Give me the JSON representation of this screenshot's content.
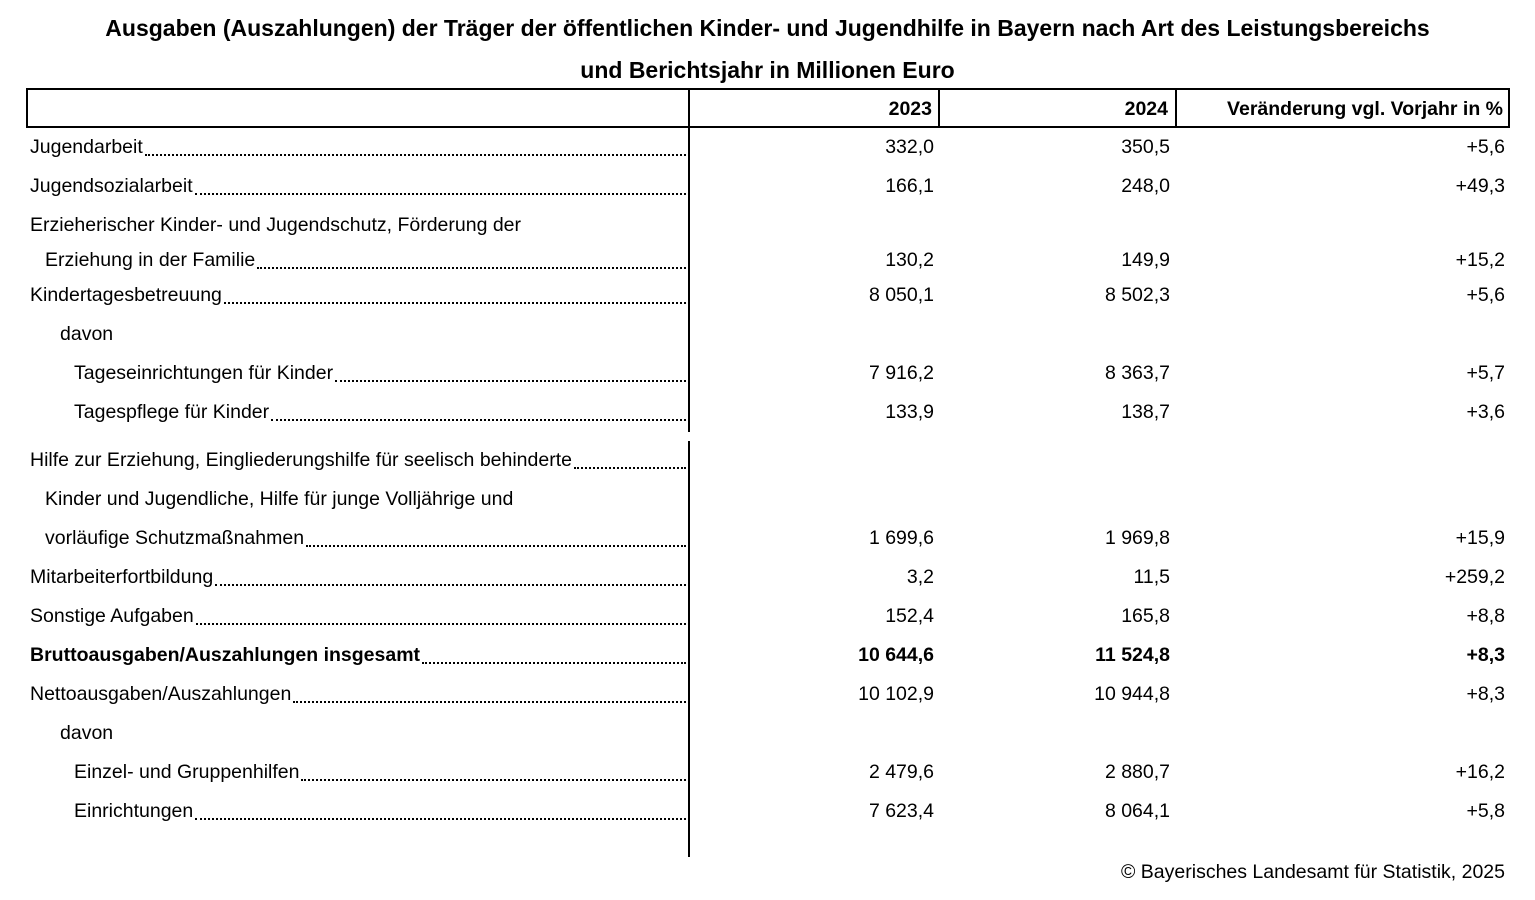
{
  "title": "Ausgaben (Auszahlungen) der Träger der öffentlichen Kinder- und Jugendhilfe in Bayern nach Art des Leistungsbereichs\nund Berichtsjahr in Millionen Euro",
  "table": {
    "columns": [
      "",
      "2023",
      "2024",
      "Veränderung vgl. Vorjahr in %"
    ],
    "rows": [
      {
        "label": "Jugendarbeit",
        "indent": 0,
        "dots": true,
        "v2023": "332,0",
        "v2024": "350,5",
        "change": "+5,6",
        "bold": false
      },
      {
        "label": "Jugendsozialarbeit",
        "indent": 0,
        "dots": true,
        "v2023": "166,1",
        "v2024": "248,0",
        "change": "+49,3",
        "bold": false
      },
      {
        "label": "Erzieherischer Kinder- und Jugendschutz, Förderung der",
        "indent": 0,
        "dots": false,
        "v2023": null,
        "v2024": null,
        "change": null,
        "bold": false
      },
      {
        "label": "Erziehung in der Familie",
        "indent": 1,
        "dots": true,
        "v2023": "130,2",
        "v2024": "149,9",
        "change": "+15,2",
        "bold": false,
        "compact": true
      },
      {
        "label": "Kindertagesbetreuung",
        "indent": 0,
        "dots": true,
        "v2023": "8 050,1",
        "v2024": "8 502,3",
        "change": "+5,6",
        "bold": false
      },
      {
        "label": "davon",
        "indent": 2,
        "dots": false,
        "v2023": null,
        "v2024": null,
        "change": null,
        "bold": false
      },
      {
        "label": "Tageseinrichtungen für Kinder",
        "indent": 3,
        "dots": true,
        "v2023": "7 916,2",
        "v2024": "8 363,7",
        "change": "+5,7",
        "bold": false
      },
      {
        "label": "Tagespflege für Kinder",
        "indent": 3,
        "dots": true,
        "v2023": "133,9",
        "v2024": "138,7",
        "change": "+3,6",
        "bold": false
      },
      {
        "label": "Hilfe zur Erziehung, Eingliederungshilfe für seelisch behinderte",
        "indent": 0,
        "dots": true,
        "v2023": null,
        "v2024": null,
        "change": null,
        "bold": false,
        "gap_before": true
      },
      {
        "label": "Kinder und Jugendliche, Hilfe für junge Volljährige und",
        "indent": 1,
        "dots": false,
        "v2023": null,
        "v2024": null,
        "change": null,
        "bold": false
      },
      {
        "label": "vorläufige Schutzmaßnahmen",
        "indent": 1,
        "dots": true,
        "v2023": "1 699,6",
        "v2024": "1 969,8",
        "change": "+15,9",
        "bold": false
      },
      {
        "label": "Mitarbeiterfortbildung",
        "indent": 0,
        "dots": true,
        "v2023": "3,2",
        "v2024": "11,5",
        "change": "+259,2",
        "bold": false
      },
      {
        "label": "Sonstige Aufgaben",
        "indent": 0,
        "dots": true,
        "v2023": "152,4",
        "v2024": "165,8",
        "change": "+8,8",
        "bold": false
      },
      {
        "label": "Bruttoausgaben/Auszahlungen insgesamt",
        "indent": 0,
        "dots": true,
        "v2023": "10 644,6",
        "v2024": "11 524,8",
        "change": "+8,3",
        "bold": true
      },
      {
        "label": "Nettoausgaben/Auszahlungen",
        "indent": 0,
        "dots": true,
        "v2023": "10 102,9",
        "v2024": "10 944,8",
        "change": "+8,3",
        "bold": false
      },
      {
        "label": "davon",
        "indent": 2,
        "dots": false,
        "v2023": null,
        "v2024": null,
        "change": null,
        "bold": false
      },
      {
        "label": "Einzel- und Gruppenhilfen",
        "indent": 3,
        "dots": true,
        "v2023": "2 479,6",
        "v2024": "2 880,7",
        "change": "+16,2",
        "bold": false
      },
      {
        "label": "Einrichtungen",
        "indent": 3,
        "dots": true,
        "v2023": "7 623,4",
        "v2024": "8 064,1",
        "change": "+5,8",
        "bold": false
      }
    ]
  },
  "footer": {
    "copyright": "© Bayerisches Landesamt für Statistik, 2025"
  }
}
